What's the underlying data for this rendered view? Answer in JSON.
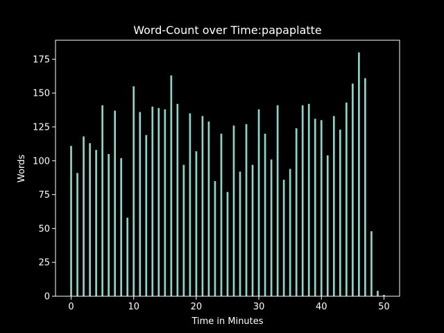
{
  "chart_data": {
    "type": "bar",
    "title": "Word-Count over Time:papaplatte",
    "xlabel": "Time in Minutes",
    "ylabel": "Words",
    "xlim": [
      -2.5,
      52.5
    ],
    "ylim": [
      0,
      189
    ],
    "xticks": [
      0,
      10,
      20,
      30,
      40,
      50
    ],
    "yticks": [
      0,
      25,
      50,
      75,
      100,
      125,
      150,
      175
    ],
    "grid": false,
    "bar_color": "#8dd3c7",
    "background_color": "#000000",
    "foreground_color": "#ffffff",
    "x": [
      0,
      1,
      2,
      3,
      4,
      5,
      6,
      7,
      8,
      9,
      10,
      11,
      12,
      13,
      14,
      15,
      16,
      17,
      18,
      19,
      20,
      21,
      22,
      23,
      24,
      25,
      26,
      27,
      28,
      29,
      30,
      31,
      32,
      33,
      34,
      35,
      36,
      37,
      38,
      39,
      40,
      41,
      42,
      43,
      44,
      45,
      46,
      47,
      48,
      49,
      50
    ],
    "values": [
      111,
      91,
      118,
      113,
      108,
      141,
      105,
      137,
      102,
      58,
      155,
      136,
      119,
      140,
      139,
      138,
      163,
      142,
      97,
      135,
      107,
      133,
      129,
      85,
      120,
      77,
      126,
      92,
      127,
      97,
      138,
      120,
      101,
      141,
      86,
      94,
      124,
      141,
      142,
      131,
      130,
      104,
      133,
      123,
      143,
      157,
      180,
      161,
      48,
      4,
      1
    ]
  }
}
